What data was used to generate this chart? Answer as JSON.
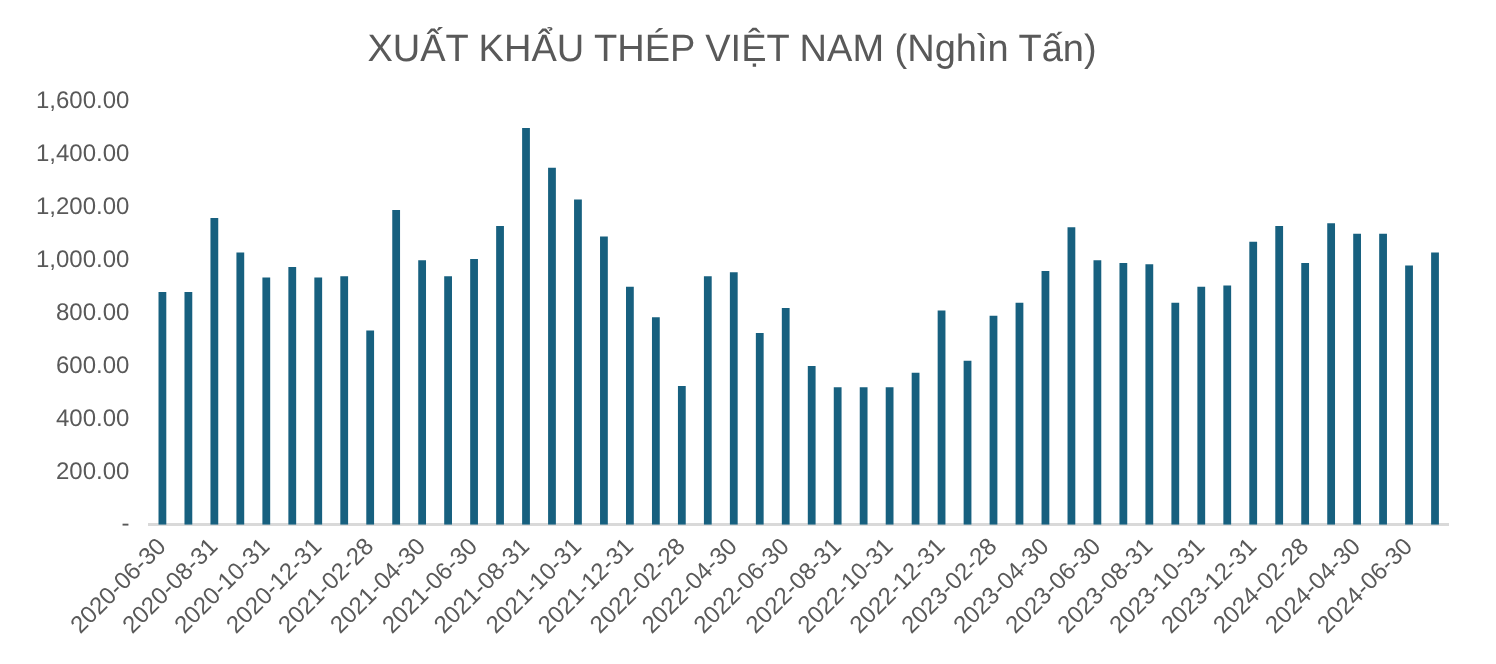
{
  "chart_data": {
    "type": "bar",
    "title": "XUẤT KHẨU THÉP VIỆT NAM (Nghìn Tấn)",
    "categories": [
      "2020-06-30",
      null,
      "2020-08-31",
      null,
      "2020-10-31",
      null,
      "2020-12-31",
      null,
      "2021-02-28",
      null,
      "2021-04-30",
      null,
      "2021-06-30",
      null,
      "2021-08-31",
      null,
      "2021-10-31",
      null,
      "2021-12-31",
      null,
      "2022-02-28",
      null,
      "2022-04-30",
      null,
      "2022-06-30",
      null,
      "2022-08-31",
      null,
      "2022-10-31",
      null,
      "2022-12-31",
      null,
      "2023-02-28",
      null,
      "2023-04-30",
      null,
      "2023-06-30",
      null,
      "2023-08-31",
      null,
      "2023-10-31",
      null,
      "2023-12-31",
      null,
      "2024-02-28",
      null,
      "2024-04-30",
      null,
      "2024-06-30",
      null
    ],
    "values": [
      880,
      880,
      1160,
      1030,
      935,
      975,
      935,
      940,
      735,
      1190,
      1000,
      940,
      1005,
      1130,
      1500,
      1350,
      1230,
      1090,
      900,
      785,
      525,
      940,
      955,
      725,
      820,
      600,
      520,
      520,
      520,
      575,
      810,
      620,
      790,
      840,
      960,
      1125,
      1000,
      990,
      985,
      840,
      900,
      905,
      1070,
      1130,
      990,
      1140,
      1100,
      1100,
      980,
      1030
    ],
    "color": "#17607f",
    "ylim": [
      0,
      1600
    ],
    "yticks": [
      {
        "value": 0,
        "label": "-"
      },
      {
        "value": 200,
        "label": "200.00"
      },
      {
        "value": 400,
        "label": "400.00"
      },
      {
        "value": 600,
        "label": "600.00"
      },
      {
        "value": 800,
        "label": "800.00"
      },
      {
        "value": 1000,
        "label": "1,000.00"
      },
      {
        "value": 1200,
        "label": "1,200.00"
      },
      {
        "value": 1400,
        "label": "1,400.00"
      },
      {
        "value": 1600,
        "label": "1,600.00"
      }
    ]
  }
}
